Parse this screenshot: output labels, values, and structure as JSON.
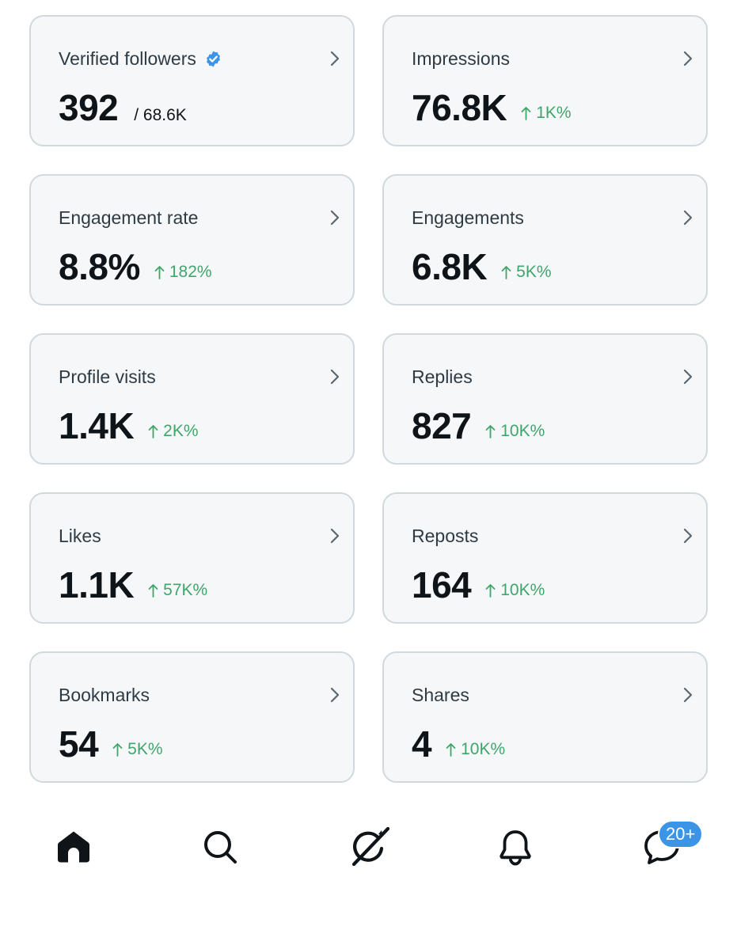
{
  "cards": [
    {
      "title": "Verified followers",
      "value": "392",
      "secondary": "/ 68.6K",
      "verified": true
    },
    {
      "title": "Impressions",
      "value": "76.8K",
      "delta": "1K%"
    },
    {
      "title": "Engagement rate",
      "value": "8.8%",
      "delta": "182%"
    },
    {
      "title": "Engagements",
      "value": "6.8K",
      "delta": "5K%"
    },
    {
      "title": "Profile visits",
      "value": "1.4K",
      "delta": "2K%"
    },
    {
      "title": "Replies",
      "value": "827",
      "delta": "10K%"
    },
    {
      "title": "Likes",
      "value": "1.1K",
      "delta": "57K%"
    },
    {
      "title": "Reposts",
      "value": "164",
      "delta": "10K%"
    },
    {
      "title": "Bookmarks",
      "value": "54",
      "delta": "5K%"
    },
    {
      "title": "Shares",
      "value": "4",
      "delta": "10K%"
    }
  ],
  "nav": {
    "items": [
      "home-icon",
      "search-icon",
      "grok-icon",
      "bell-icon",
      "messages-icon"
    ],
    "messages_badge": "20+"
  },
  "colors": {
    "card_bg": "#f5f7f8",
    "card_border": "#cfd9de",
    "positive": "#3fa66b",
    "verified": "#3b94e6",
    "badge": "#3b94e6"
  }
}
